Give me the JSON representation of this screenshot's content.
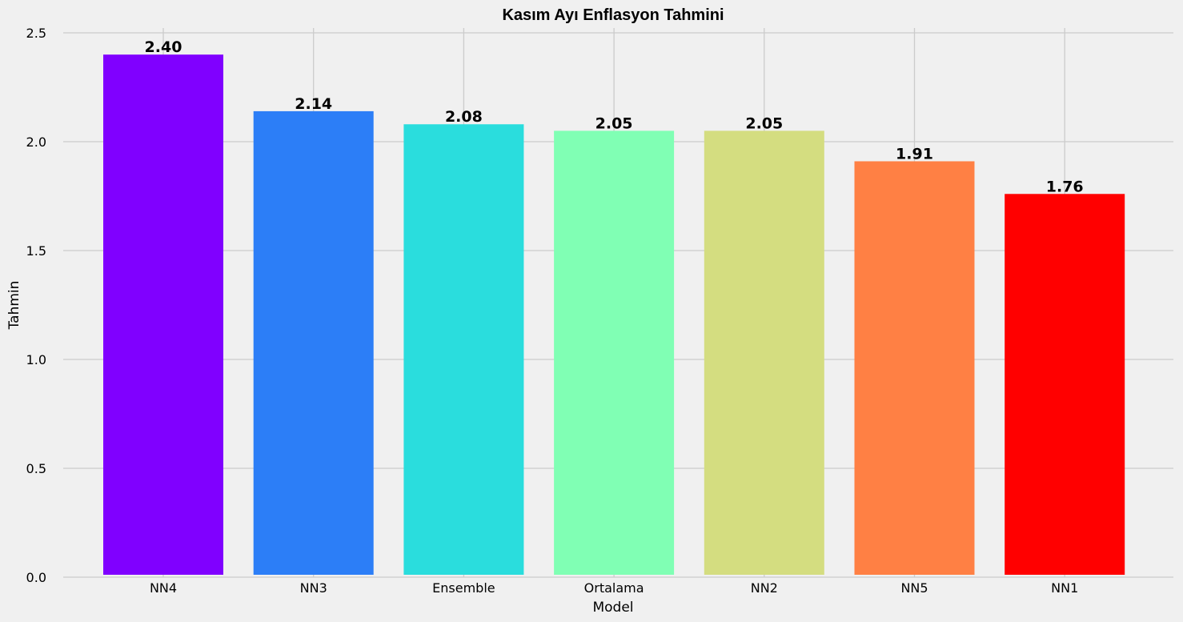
{
  "chart_data": {
    "type": "bar",
    "title": "Kasım Ayı Enflasyon Tahmini",
    "xlabel": "Model",
    "ylabel": "Tahmin",
    "categories": [
      "NN4",
      "NN3",
      "Ensemble",
      "Ortalama",
      "NN2",
      "NN5",
      "NN1"
    ],
    "values": [
      2.4,
      2.14,
      2.08,
      2.05,
      2.05,
      1.91,
      1.76
    ],
    "value_labels": [
      "2.40",
      "2.14",
      "2.08",
      "2.05",
      "2.05",
      "1.91",
      "1.76"
    ],
    "colors": [
      "#8000ff",
      "#2c7ef7",
      "#2adddd",
      "#80ffb4",
      "#d4dd80",
      "#ff8044",
      "#ff0000"
    ],
    "ylim": [
      0,
      2.5
    ],
    "yticks": [
      0.0,
      0.5,
      1.0,
      1.5,
      2.0,
      2.5
    ],
    "ytick_labels": [
      "0.0",
      "0.5",
      "1.0",
      "1.5",
      "2.0",
      "2.5"
    ],
    "grid": true,
    "background": "#f0f0f0"
  }
}
